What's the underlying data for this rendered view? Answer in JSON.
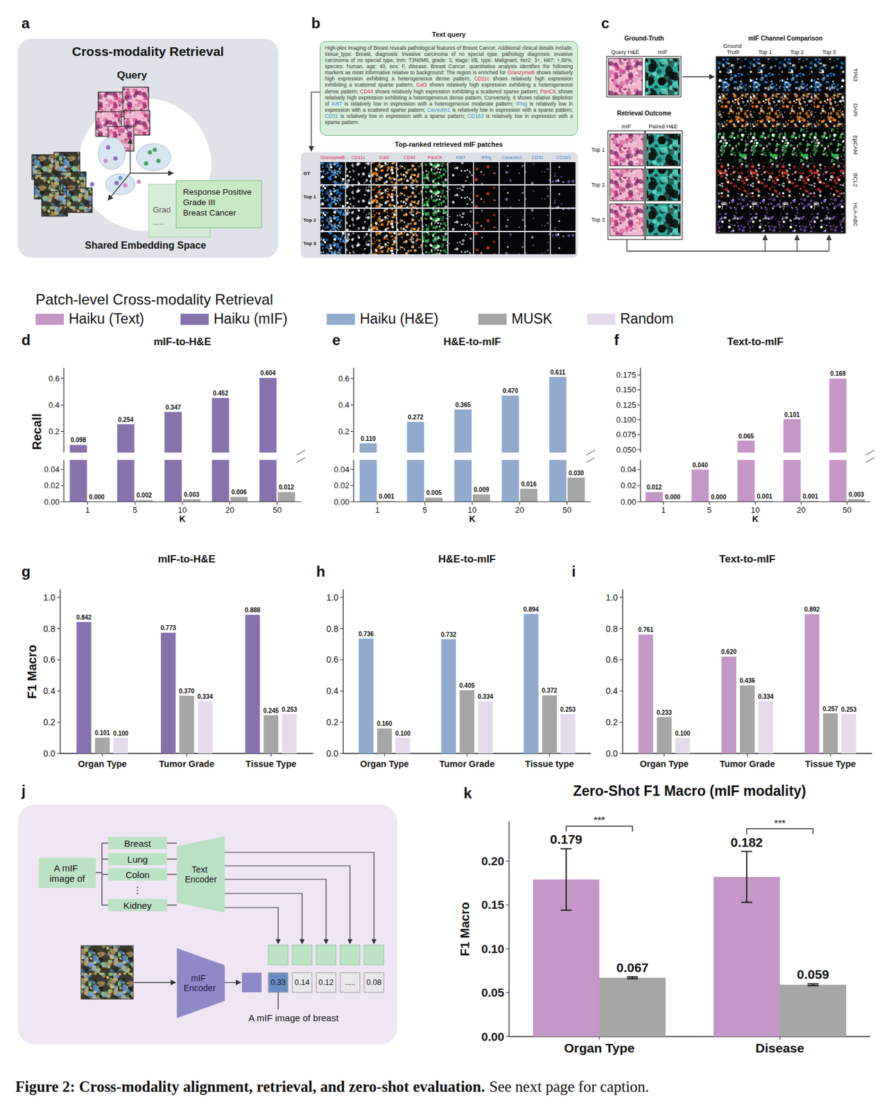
{
  "caption": {
    "label_bold": "Figure 2: Cross-modality alignment, retrieval, and zero-shot evaluation.",
    "text": "See next page for caption."
  },
  "panel_a": {
    "letter": "a",
    "title": "Cross-modality Retrieval",
    "query_label": "Query",
    "space_label": "Shared Embedding Space",
    "text_card": [
      "Response Positive",
      "Grade III",
      "Breast Cancer"
    ],
    "back_card": [
      "Grad",
      "....."
    ]
  },
  "panel_b": {
    "letter": "b",
    "query_title": "Text query",
    "query_segments": [
      {
        "text": "High-plex imaging of Breast reveals pathological features of Breast Cancer. Additional clinical details include, tissue_type: Breast, diagnosis: Invasive carcinoma of no special type, pathology diagnosis: Invasive carcinoma of no special type, tnm: T3N0M0, grade: 3, stage: IIB, type: Malignant, her2: 3+, ki67: +,50%, species: human, age: 40, sex: F, disease: Breast Cancer. quantitative analysis identifies the following markers as most informative relative to background: The region is enriched for "
      },
      {
        "text": "GranzymeB",
        "color": "#d9204f"
      },
      {
        "text": " shows relatively high expression exhibiting a heterogeneous dense pattern; "
      },
      {
        "text": "CD11c",
        "color": "#d9204f"
      },
      {
        "text": " shows relatively high expression exhibiting a scattered sparse pattern; "
      },
      {
        "text": "Gal3",
        "color": "#d9204f"
      },
      {
        "text": " shows relatively high expression exhibiting a heterogeneous dense pattern; "
      },
      {
        "text": "CD44",
        "color": "#d9204f"
      },
      {
        "text": " shows relatively high expression exhibiting a scattered sparse pattern; "
      },
      {
        "text": "PanCK",
        "color": "#d9204f"
      },
      {
        "text": " shows relatively high expression exhibiting a heterogeneous dense pattern. Conversely, it shows relative depletion of "
      },
      {
        "text": "Ki67",
        "color": "#3b7fc8"
      },
      {
        "text": " is relatively low in expression with a heterogeneous moderate pattern; "
      },
      {
        "text": "IFNg",
        "color": "#3b7fc8"
      },
      {
        "text": " is relatively low in expression with a scattered sparse pattern; "
      },
      {
        "text": "Caveolin1",
        "color": "#3b7fc8"
      },
      {
        "text": " is relatively low in expression with a sparse pattern; "
      },
      {
        "text": "CD31",
        "color": "#3b7fc8"
      },
      {
        "text": " is relatively low in expression with a sparse pattern; "
      },
      {
        "text": "CD163",
        "color": "#3b7fc8"
      },
      {
        "text": " is relatively low in expression with a sparse pattern."
      }
    ],
    "grid_title": "Top-ranked retrieved mIF patches",
    "channels": [
      {
        "name": "GranzymeB",
        "color": "#d9204f"
      },
      {
        "name": "CD11c",
        "color": "#d9204f"
      },
      {
        "name": "Gal3",
        "color": "#d9204f"
      },
      {
        "name": "CD44",
        "color": "#d9204f"
      },
      {
        "name": "PanCK",
        "color": "#d9204f"
      },
      {
        "name": "Ki67",
        "color": "#3b7fc8"
      },
      {
        "name": "IFNg",
        "color": "#3b7fc8"
      },
      {
        "name": "Caveolin1",
        "color": "#3b7fc8"
      },
      {
        "name": "CD31",
        "color": "#3b7fc8"
      },
      {
        "name": "CD163",
        "color": "#3b7fc8"
      }
    ],
    "rows": [
      "GT",
      "Top 1",
      "Top 2",
      "Top 3"
    ]
  },
  "panel_c": {
    "letter": "c",
    "gt_title": "Ground-Truth",
    "gt_columns": [
      "Query H&E",
      "mIF"
    ],
    "outcome_title": "Retrieval Outcome",
    "outcome_columns": [
      "mIF",
      "Paired H&E"
    ],
    "outcome_rows": [
      "Top 1",
      "Top 2",
      "Top 3"
    ],
    "comparison_title": "mIF Channel Comparison",
    "comparison_columns": [
      "Ground Truth",
      "Top 1",
      "Top 2",
      "Top 3"
    ],
    "comparison_channels": [
      "TP63",
      "DAPI",
      "EpCAM",
      "BCL2",
      "HLA-ABC"
    ]
  },
  "legend": {
    "title": "Patch-level Cross-modality Retrieval",
    "items": [
      {
        "name": "Haiku (Text)",
        "color": "#c497c8"
      },
      {
        "name": "Haiku (mIF)",
        "color": "#8673ae"
      },
      {
        "name": "Haiku (H&E)",
        "color": "#91abcf"
      },
      {
        "name": "MUSK",
        "color": "#a6a6a6"
      },
      {
        "name": "Random",
        "color": "#e4dceb"
      }
    ]
  },
  "panel_j": {
    "letter": "j",
    "prompt": "A mIF image of",
    "classes": [
      "Breast",
      "Lung",
      "Colon",
      "⋮",
      "Kidney"
    ],
    "text_encoder": "Text Encoder",
    "image_encoder": "mIF Encoder",
    "scores": [
      "0.33",
      "0.14",
      "0.12",
      ".....",
      "0.08"
    ],
    "result": "A  mIF image of breast"
  },
  "chart_data": [
    {
      "letter": "d",
      "type": "bar",
      "title": "mIF-to-H&E",
      "x_label": "K",
      "y_label": "Recall",
      "categories": [
        "1",
        "5",
        "10",
        "20",
        "50"
      ],
      "series": [
        {
          "color": "#8673ae",
          "values": [
            0.098,
            0.254,
            0.347,
            0.452,
            0.604
          ]
        },
        {
          "color": "#a6a6a6",
          "values": [
            0,
            0.002,
            0.003,
            0.006,
            0.012
          ],
          "value_labels": [
            "0.000",
            "0.002",
            "0.003",
            "0.006",
            "0.012"
          ]
        }
      ],
      "ylim_segments": [
        [
          0,
          0.052
        ],
        [
          0.04,
          0.68
        ]
      ],
      "yticks_segments": [
        [
          {
            "value": 0,
            "label": "0.00"
          },
          0.02,
          0.04
        ],
        [
          0.2,
          0.4,
          0.6
        ]
      ],
      "data_labels": true
    },
    {
      "letter": "e",
      "type": "bar",
      "title": "H&E-to-mIF",
      "x_label": "K",
      "categories": [
        "1",
        "5",
        "10",
        "20",
        "50"
      ],
      "series": [
        {
          "color": "#91abcf",
          "values": [
            0.11,
            0.272,
            0.365,
            0.47,
            0.611
          ],
          "value_labels": [
            "0.110",
            "0.272",
            "0.365",
            "0.470",
            "0.611"
          ]
        },
        {
          "color": "#a6a6a6",
          "values": [
            0.001,
            0.005,
            0.009,
            0.016,
            0.03
          ],
          "value_labels": [
            "0.001",
            "0.005",
            "0.009",
            "0.016",
            "0.030"
          ]
        }
      ],
      "ylim_segments": [
        [
          0,
          0.052
        ],
        [
          0.04,
          0.68
        ]
      ],
      "yticks_segments": [
        [
          {
            "value": 0,
            "label": "0.00"
          },
          0.02,
          0.04
        ],
        [
          0.2,
          0.4,
          0.6
        ]
      ],
      "data_labels": true
    },
    {
      "letter": "f",
      "type": "bar",
      "title": "Text-to-mIF",
      "x_label": "K",
      "categories": [
        "1",
        "5",
        "10",
        "20",
        "50"
      ],
      "series": [
        {
          "color": "#c497c8",
          "values": [
            0.012,
            0.04,
            0.065,
            0.101,
            0.169
          ],
          "value_labels": [
            "0.012",
            "0.040",
            "0.065",
            "0.101",
            "0.169"
          ]
        },
        {
          "color": "#a6a6a6",
          "values": [
            0,
            0,
            0.001,
            0.001,
            0.003
          ],
          "value_labels": [
            "0.000",
            "0.000",
            "0.001",
            "0.001",
            "0.003"
          ]
        }
      ],
      "ylim_segments": [
        [
          0,
          0.052
        ],
        [
          0.045,
          0.187
        ]
      ],
      "yticks_segments": [
        [
          {
            "value": 0,
            "label": "0.00"
          },
          0.02,
          0.04
        ],
        [
          {
            "value": 0.05,
            "label": "0.050"
          },
          0.075,
          {
            "value": 0.1,
            "label": "0.100"
          },
          0.125,
          {
            "value": 0.15,
            "label": "0.150"
          },
          0.175
        ]
      ],
      "data_labels": true
    },
    {
      "letter": "g",
      "type": "bar",
      "title": "mIF-to-H&E",
      "y_label": "F1 Macro",
      "categories": [
        "Organ Type",
        "Tumor Grade",
        "Tissue Type"
      ],
      "series": [
        {
          "color": "#8673ae",
          "values": [
            0.842,
            0.773,
            0.888
          ]
        },
        {
          "color": "#a6a6a6",
          "values": [
            0.101,
            0.37,
            0.245
          ],
          "value_labels": [
            "0.101",
            "0.370",
            "0.245"
          ]
        },
        {
          "color": "#e4dceb",
          "values": [
            0.1,
            0.334,
            0.253
          ],
          "value_labels": [
            "0.100",
            "0.334",
            "0.253"
          ]
        }
      ],
      "ylim": [
        0,
        1.05
      ],
      "yticks": [
        {
          "value": 0,
          "label": "0.0"
        },
        0.2,
        0.4,
        0.6,
        0.8,
        {
          "value": 1,
          "label": "1.0"
        }
      ],
      "data_labels": true
    },
    {
      "letter": "h",
      "type": "bar",
      "title": "H&E-to-mIF",
      "categories": [
        "Organ Type",
        "Tumor Grade",
        "Tissue type"
      ],
      "series": [
        {
          "color": "#91abcf",
          "values": [
            0.736,
            0.732,
            0.894
          ]
        },
        {
          "color": "#a6a6a6",
          "values": [
            0.16,
            0.405,
            0.372
          ],
          "value_labels": [
            "0.160",
            "0.405",
            "0.372"
          ]
        },
        {
          "color": "#e4dceb",
          "values": [
            0.1,
            0.334,
            0.253
          ],
          "value_labels": [
            "0.100",
            "0.334",
            "0.253"
          ]
        }
      ],
      "ylim": [
        0,
        1.05
      ],
      "yticks": [
        {
          "value": 0,
          "label": "0.0"
        },
        0.2,
        0.4,
        0.6,
        0.8,
        {
          "value": 1,
          "label": "1.0"
        }
      ],
      "data_labels": true
    },
    {
      "letter": "i",
      "type": "bar",
      "title": "Text-to-mIF",
      "categories": [
        "Organ Type",
        "Tumor Grade",
        "Tissue Type"
      ],
      "series": [
        {
          "color": "#c497c8",
          "values": [
            0.761,
            0.62,
            0.892
          ],
          "value_labels": [
            "0.761",
            "0.620",
            "0.892"
          ]
        },
        {
          "color": "#a6a6a6",
          "values": [
            0.233,
            0.436,
            0.257
          ]
        },
        {
          "color": "#e4dceb",
          "values": [
            0.1,
            0.334,
            0.253
          ],
          "value_labels": [
            "0.100",
            "0.334",
            "0.253"
          ]
        }
      ],
      "ylim": [
        0,
        1.05
      ],
      "yticks": [
        {
          "value": 0,
          "label": "0.0"
        },
        0.2,
        0.4,
        0.6,
        0.8,
        {
          "value": 1,
          "label": "1.0"
        }
      ],
      "data_labels": true
    },
    {
      "letter": "k",
      "type": "bar",
      "title": "Zero-Shot F1 Macro (mIF modality)",
      "y_label": "F1 Macro",
      "categories": [
        "Organ Type",
        "Disease"
      ],
      "series": [
        {
          "color": "#c497c8",
          "values": [
            0.179,
            0.182
          ],
          "errors": [
            0.035,
            0.029
          ]
        },
        {
          "color": "#a6a6a6",
          "values": [
            0.067,
            0.059
          ],
          "errors": [
            0.001,
            0.001
          ]
        }
      ],
      "significance": [
        "***",
        "***"
      ],
      "ylim": [
        0,
        0.245
      ],
      "yticks": [
        {
          "value": 0,
          "label": "0.00"
        },
        0.05,
        {
          "value": 0.1,
          "label": "0.10"
        },
        0.15,
        {
          "value": 0.2,
          "label": "0.20"
        }
      ],
      "data_labels": true
    }
  ]
}
